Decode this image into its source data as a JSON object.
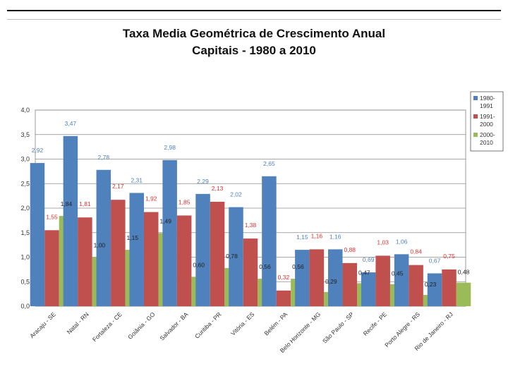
{
  "chart_data": {
    "type": "bar",
    "title": "Taxa Media Geométrica de Crescimento Anual",
    "subtitle": "Capitais - 1980 a 2010",
    "xlabel": "",
    "ylabel": "",
    "ylim": [
      0,
      4.0
    ],
    "yticks": [
      "0,0",
      "0,5",
      "1,0",
      "1,5",
      "2,0",
      "2,5",
      "3,0",
      "3,5",
      "4,0"
    ],
    "grid": true,
    "legend_position": "top-right",
    "categories": [
      "Aracaju - SE",
      "Natal - RN",
      "Fortaleza - CE",
      "Goiânia - GO",
      "Salvador - BA",
      "Curitiba - PR",
      "Vitória - ES",
      "Belém - PA",
      "Belo Horizonte - MG",
      "São Paulo - SP",
      "Recife - PE",
      "Porto Alegre - RS",
      "Rio de Janeiro - RJ"
    ],
    "series": [
      {
        "name": "1980-1991",
        "color": "#4f81bd",
        "label_color": "#4f81bd",
        "values": [
          2.92,
          3.47,
          2.78,
          2.31,
          2.98,
          2.29,
          2.02,
          2.65,
          1.15,
          1.16,
          0.69,
          1.06,
          0.67
        ],
        "labels": [
          "2,92",
          "3,47",
          "2,78",
          "2,31",
          "2,98",
          "2,29",
          "2,02",
          "2,65",
          "1,15",
          "1,16",
          "0,69",
          "1,06",
          "0,67"
        ]
      },
      {
        "name": "1991-2000",
        "color": "#c0504d",
        "label_color": "#e03030",
        "values": [
          1.55,
          1.81,
          2.17,
          1.92,
          1.85,
          2.13,
          1.38,
          0.32,
          1.16,
          0.88,
          1.03,
          0.84,
          0.75
        ],
        "labels": [
          "1,55",
          "1,81",
          "2,17",
          "1,92",
          "1,85",
          "2,13",
          "1,38",
          "0,32",
          "1,16",
          "0,88",
          "1,03",
          "0,84",
          "0,75"
        ]
      },
      {
        "name": "2000-2010",
        "color": "#9bbb59",
        "label_color": "#222222",
        "values": [
          1.84,
          1.0,
          1.15,
          1.49,
          0.6,
          0.78,
          0.56,
          0.56,
          0.29,
          0.47,
          0.45,
          0.23,
          0.48
        ],
        "labels": [
          "1,84",
          "1,00",
          "1,15",
          "1,49",
          "0,60",
          "0,78",
          "0,56",
          "0,56",
          "0,29",
          "0,47",
          "0,45",
          "0,23",
          "0,48"
        ]
      }
    ]
  }
}
